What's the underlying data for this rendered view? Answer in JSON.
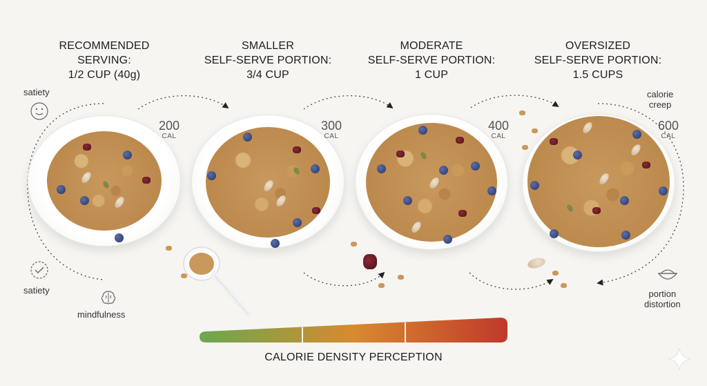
{
  "portions": [
    {
      "lines": [
        "RECOMMENDED",
        "SERVING:",
        "1/2 CUP (40g)"
      ],
      "cal": "200",
      "unit": "CAL"
    },
    {
      "lines": [
        "SMALLER",
        "SELF-SERVE PORTION:",
        "3/4 CUP"
      ],
      "cal": "300",
      "unit": "CAL"
    },
    {
      "lines": [
        "MODERATE",
        "SELF-SERVE PORTION:",
        "1 CUP"
      ],
      "cal": "400",
      "unit": "CAL"
    },
    {
      "lines": [
        "OVERSIZED",
        "SELF-SERVE PORTION:",
        "1.5 CUPS"
      ],
      "cal": "600",
      "unit": "CAL"
    }
  ],
  "left_labels": {
    "satiety_top": "satiety",
    "satiety_bottom": "satiety",
    "mindfulness": "mindfulness"
  },
  "right_labels": {
    "calorie_creep": [
      "calorie",
      "creep"
    ],
    "portion_distortion": [
      "portion",
      "distortion"
    ]
  },
  "scale": {
    "title": "CALORIE DENSITY PERCEPTION",
    "colors": [
      "#6aa84f",
      "#d88a2f",
      "#c0392b"
    ]
  },
  "icons": [
    "smiley-icon",
    "check-badge-icon",
    "brain-icon",
    "bowl-icon",
    "sparkle-icon"
  ]
}
